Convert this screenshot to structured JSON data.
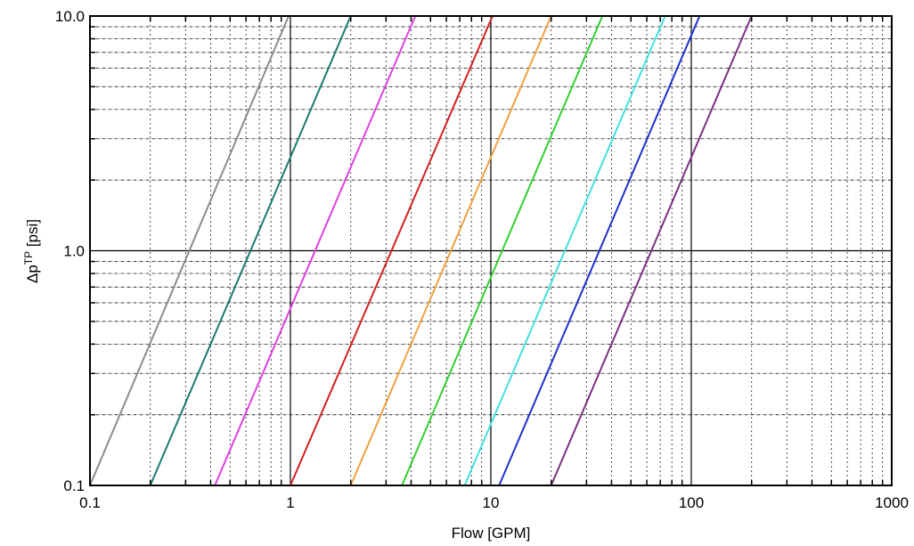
{
  "chart_data": {
    "type": "line",
    "xscale": "log",
    "yscale": "log",
    "xlim": [
      0.1,
      1000
    ],
    "ylim": [
      0.1,
      10.0
    ],
    "xlabel": "Flow [GPM]",
    "ylabel": "Δp",
    "ylabel_sup": "TP",
    "ylabel_suffix": " [psi]",
    "xticks": [
      {
        "value": 0.1,
        "label": "0.1"
      },
      {
        "value": 1,
        "label": "1"
      },
      {
        "value": 10,
        "label": "10"
      },
      {
        "value": 100,
        "label": "100"
      },
      {
        "value": 1000,
        "label": "1000"
      }
    ],
    "yticks": [
      {
        "value": 0.1,
        "label": "0.1"
      },
      {
        "value": 1,
        "label": "1.0"
      },
      {
        "value": 10,
        "label": "10.0"
      }
    ],
    "grid": true,
    "legend": false,
    "series": [
      {
        "color": "#8c8c8c",
        "x": [
          0.1,
          0.98
        ],
        "y": [
          0.1,
          10.0
        ]
      },
      {
        "color": "#1a7a72",
        "x": [
          0.2,
          2.0
        ],
        "y": [
          0.1,
          10.0
        ]
      },
      {
        "color": "#e040e0",
        "x": [
          0.42,
          4.2
        ],
        "y": [
          0.1,
          10.0
        ]
      },
      {
        "color": "#d42020",
        "x": [
          1.0,
          10.2
        ],
        "y": [
          0.1,
          10.0
        ]
      },
      {
        "color": "#f0a040",
        "x": [
          2.0,
          20.0
        ],
        "y": [
          0.1,
          10.0
        ]
      },
      {
        "color": "#30d030",
        "x": [
          3.6,
          36.0
        ],
        "y": [
          0.1,
          10.0
        ]
      },
      {
        "color": "#40e0e0",
        "x": [
          7.4,
          74.0
        ],
        "y": [
          0.1,
          10.0
        ]
      },
      {
        "color": "#2030d0",
        "x": [
          11.0,
          110.0
        ],
        "y": [
          0.1,
          10.0
        ]
      },
      {
        "color": "#7a3080",
        "x": [
          20.0,
          200.0
        ],
        "y": [
          0.1,
          10.0
        ]
      }
    ]
  }
}
